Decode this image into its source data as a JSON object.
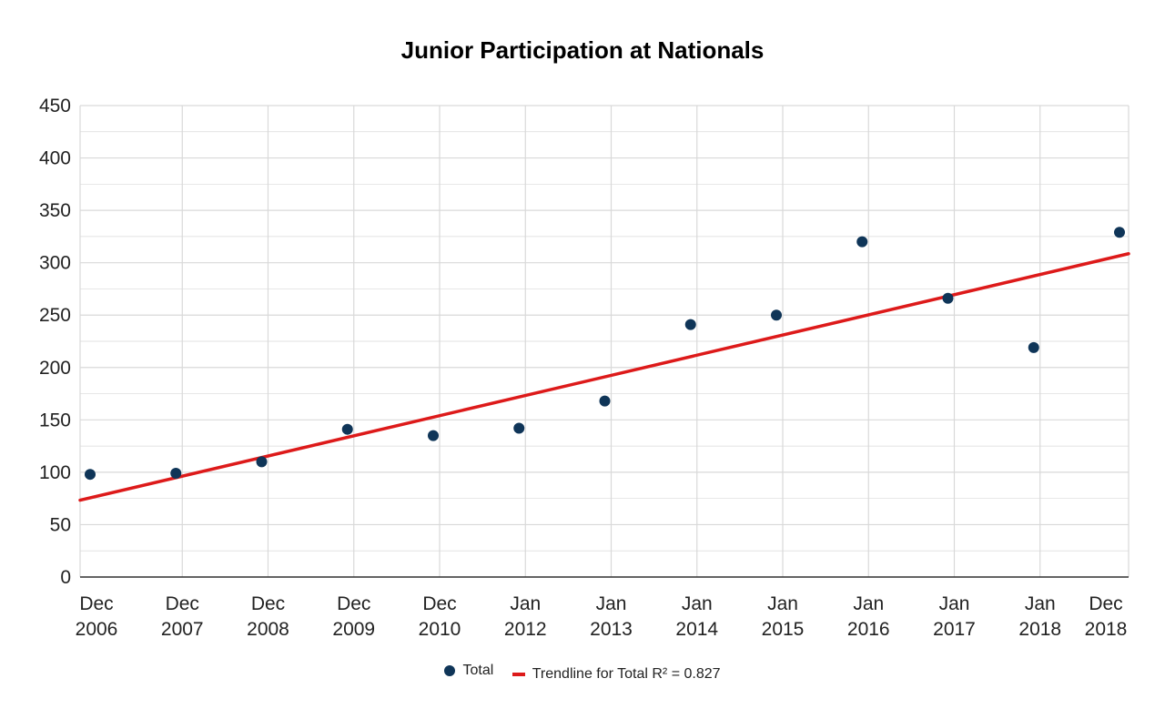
{
  "colors": {
    "points": "#0f3558",
    "trendline": "#dd1a1a",
    "grid": "#d9d9d9",
    "axis": "#333333"
  },
  "chart_data": {
    "type": "scatter",
    "title": "Junior Participation at Nationals",
    "xlabel": "",
    "ylabel": "",
    "ylim": [
      0,
      450
    ],
    "yticks": [
      0,
      50,
      100,
      150,
      200,
      250,
      300,
      350,
      400,
      450
    ],
    "x_tick_labels": [
      [
        "Dec",
        "2006"
      ],
      [
        "Dec",
        "2007"
      ],
      [
        "Dec",
        "2008"
      ],
      [
        "Dec",
        "2009"
      ],
      [
        "Dec",
        "2010"
      ],
      [
        "Jan",
        "2012"
      ],
      [
        "Jan",
        "2013"
      ],
      [
        "Jan",
        "2014"
      ],
      [
        "Jan",
        "2015"
      ],
      [
        "Jan",
        "2016"
      ],
      [
        "Jan",
        "2017"
      ],
      [
        "Jan",
        "2018"
      ],
      [
        "Dec",
        "2018"
      ]
    ],
    "series": [
      {
        "name": "Total",
        "x": [
          "Dec 2006",
          "Dec 2007",
          "Dec 2008",
          "Dec 2009",
          "Dec 2010",
          "Jan 2012",
          "Jan 2013",
          "Jan 2014",
          "Jan 2015",
          "Jan 2016",
          "Jan 2017",
          "Jan 2018",
          "Dec 2018"
        ],
        "values": [
          98,
          99,
          110,
          141,
          135,
          142,
          168,
          241,
          250,
          320,
          266,
          219,
          329
        ]
      }
    ],
    "trendline": {
      "name": "Trendline for Total R² = 0.827",
      "start": [
        "Dec 2006",
        77
      ],
      "end": [
        "Dec 2018",
        308
      ]
    },
    "grid": true,
    "legend_position": "bottom"
  }
}
